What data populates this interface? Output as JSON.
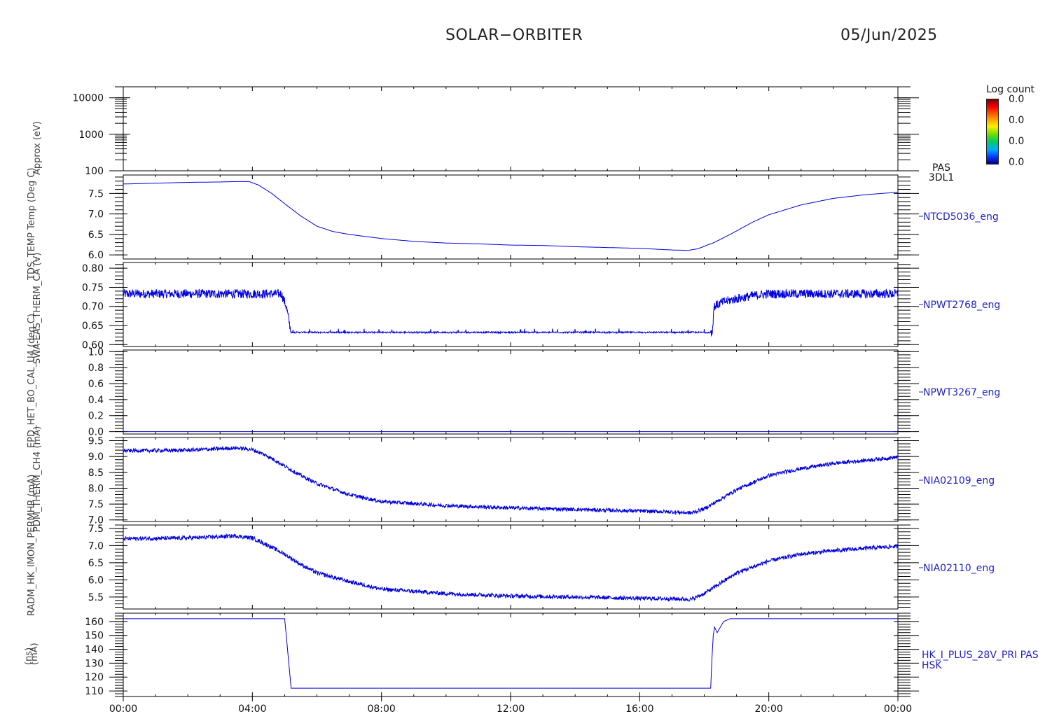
{
  "header": {
    "title": "SOLAR−ORBITER",
    "date": "05/Jun/2025"
  },
  "colors": {
    "trace": "#0000e0",
    "label": "#2323c8",
    "axis": "#000000"
  },
  "colorbar": {
    "title": "Log count",
    "labels": [
      "0.0",
      "0.0",
      "0.0",
      "0.0"
    ]
  },
  "ylabels": [
    "(ns)",
    "(mA)",
    "RADM_HK_IMON_PERMHR (mA)",
    "PDM_THERM_CH4 (mA)",
    "EPD_HET_BO_CAL_U4 (deg C)",
    "SWA-EAS_THERM_CA (V)",
    "TDS_TEMP Temp (Deg C)",
    "Approx (eV)"
  ],
  "chart_data": {
    "type": "line",
    "xlabel": "",
    "xlim": [
      "00:00",
      "24:00"
    ],
    "x_ticks": [
      "00:00",
      "04:00",
      "08:00",
      "12:00",
      "16:00",
      "20:00",
      "00:00"
    ],
    "panels": [
      {
        "kind": "spectrogram",
        "labels": [
          "PAS",
          "3DL1"
        ],
        "yscale": "log",
        "ylim": [
          100,
          20000
        ],
        "y_ticks": [
          100,
          1000,
          10000
        ],
        "y_tick_labels": [
          "100",
          "1000",
          "10000"
        ],
        "x": [],
        "y": []
      },
      {
        "label": "NTCD5036_eng",
        "ylim": [
          5.9,
          7.95
        ],
        "y_ticks": [
          6.0,
          6.5,
          7.0,
          7.5
        ],
        "y_tick_labels": [
          "6.0",
          "6.5",
          "7.0",
          "7.5"
        ],
        "noise": 0,
        "x": [
          0,
          1,
          2,
          3,
          3.5,
          3.9,
          4.2,
          4.6,
          5.0,
          5.5,
          6.0,
          6.5,
          7.0,
          8.0,
          9.0,
          10.0,
          11.0,
          12.0,
          13.0,
          14.0,
          15.0,
          16.0,
          17.0,
          17.5,
          17.8,
          18.3,
          18.8,
          19.5,
          20.0,
          20.5,
          21.0,
          22.0,
          23.0,
          24.0
        ],
        "y": [
          7.73,
          7.75,
          7.77,
          7.78,
          7.79,
          7.79,
          7.7,
          7.5,
          7.25,
          6.95,
          6.7,
          6.57,
          6.5,
          6.4,
          6.33,
          6.29,
          6.27,
          6.24,
          6.23,
          6.2,
          6.18,
          6.16,
          6.12,
          6.11,
          6.15,
          6.3,
          6.5,
          6.8,
          6.98,
          7.1,
          7.22,
          7.38,
          7.47,
          7.53
        ]
      },
      {
        "label": "NPWT2768_eng",
        "ylim": [
          0.595,
          0.815
        ],
        "y_ticks": [
          0.6,
          0.65,
          0.7,
          0.75,
          0.8
        ],
        "y_tick_labels": [
          "0.60",
          "0.65",
          "0.70",
          "0.75",
          "0.80"
        ],
        "noise": 0.012,
        "x": [
          0,
          4.9,
          5.05,
          5.2,
          17.9,
          18.25,
          18.3,
          18.6,
          19.0,
          19.5,
          20.0,
          24.0
        ],
        "y": [
          0.733,
          0.733,
          0.7,
          0.632,
          0.632,
          0.632,
          0.7,
          0.712,
          0.72,
          0.728,
          0.733,
          0.733
        ]
      },
      {
        "label": "NPWT3267_eng",
        "ylim": [
          -0.03,
          1.02
        ],
        "y_ticks": [
          0.0,
          0.2,
          0.4,
          0.6,
          0.8,
          1.0
        ],
        "y_tick_labels": [
          "0.0",
          "0.2",
          "0.4",
          "0.6",
          "0.8",
          "1.0"
        ],
        "noise": 0,
        "x": [
          0,
          24
        ],
        "y": [
          0.0,
          0.0
        ]
      },
      {
        "label": "NIA02109_eng",
        "ylim": [
          6.95,
          9.6
        ],
        "y_ticks": [
          7.0,
          7.5,
          8.0,
          8.5,
          9.0,
          9.5
        ],
        "y_tick_labels": [
          "7.0",
          "7.5",
          "8.0",
          "8.5",
          "9.0",
          "9.5"
        ],
        "noise": 0.06,
        "x": [
          0,
          2,
          3.5,
          4.0,
          4.5,
          5.0,
          5.5,
          6.0,
          7.0,
          8.0,
          10.0,
          12.0,
          14.0,
          16.0,
          17.0,
          17.6,
          18.0,
          18.5,
          19.0,
          20.0,
          21.0,
          22.0,
          23.0,
          24.0
        ],
        "y": [
          9.18,
          9.2,
          9.27,
          9.22,
          9.0,
          8.7,
          8.4,
          8.15,
          7.8,
          7.58,
          7.45,
          7.38,
          7.33,
          7.28,
          7.25,
          7.22,
          7.35,
          7.65,
          7.95,
          8.4,
          8.62,
          8.78,
          8.88,
          8.98
        ]
      },
      {
        "label": "NIA02110_eng",
        "ylim": [
          5.15,
          7.6
        ],
        "y_ticks": [
          5.5,
          6.0,
          6.5,
          7.0,
          7.5
        ],
        "y_tick_labels": [
          "5.5",
          "6.0",
          "6.5",
          "7.0",
          "7.5"
        ],
        "noise": 0.06,
        "x": [
          0,
          2,
          3.5,
          4.0,
          4.5,
          5.0,
          5.5,
          6.0,
          7.0,
          8.0,
          10.0,
          12.0,
          14.0,
          16.0,
          17.0,
          17.6,
          18.0,
          18.5,
          19.0,
          20.0,
          21.0,
          22.0,
          23.0,
          24.0
        ],
        "y": [
          7.2,
          7.22,
          7.28,
          7.22,
          7.0,
          6.75,
          6.45,
          6.2,
          5.95,
          5.73,
          5.6,
          5.53,
          5.5,
          5.46,
          5.45,
          5.43,
          5.6,
          5.9,
          6.2,
          6.55,
          6.75,
          6.85,
          6.92,
          6.98
        ]
      },
      {
        "labels": [
          "HK_I_PLUS_28V_PRI PAS",
          "HSK"
        ],
        "ylim": [
          106,
          166
        ],
        "y_ticks": [
          110,
          120,
          130,
          140,
          150,
          160
        ],
        "y_tick_labels": [
          "110",
          "120",
          "130",
          "140",
          "150",
          "160"
        ],
        "noise": 0,
        "x": [
          0,
          5.0,
          5.05,
          5.2,
          18.2,
          18.25,
          18.3,
          18.4,
          18.6,
          18.8,
          24.0
        ],
        "y": [
          162,
          162,
          150,
          112,
          112,
          140,
          157,
          152,
          160,
          162,
          162
        ]
      }
    ]
  }
}
